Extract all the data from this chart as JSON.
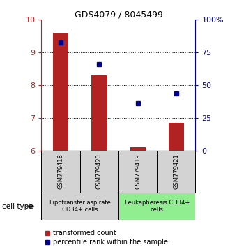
{
  "title": "GDS4079 / 8045499",
  "samples": [
    "GSM779418",
    "GSM779420",
    "GSM779419",
    "GSM779421"
  ],
  "bar_values": [
    9.6,
    8.3,
    6.1,
    6.85
  ],
  "bar_base": 6.0,
  "blue_values": [
    9.3,
    8.65,
    7.45,
    7.75
  ],
  "ylim": [
    6,
    10
  ],
  "yticks_left": [
    6,
    7,
    8,
    9,
    10
  ],
  "yticks_right": [
    0,
    25,
    50,
    75,
    100
  ],
  "bar_color": "#b22222",
  "blue_color": "#00008b",
  "groups": [
    {
      "label": "Lipotransfer aspirate\nCD34+ cells",
      "color": "#d3d3d3"
    },
    {
      "label": "Leukapheresis CD34+\ncells",
      "color": "#90ee90"
    }
  ],
  "group_header_color": "#d3d3d3",
  "group2_header_color": "#90ee90",
  "legend_red_label": "transformed count",
  "legend_blue_label": "percentile rank within the sample",
  "cell_type_label": "cell type",
  "bar_width": 0.4
}
